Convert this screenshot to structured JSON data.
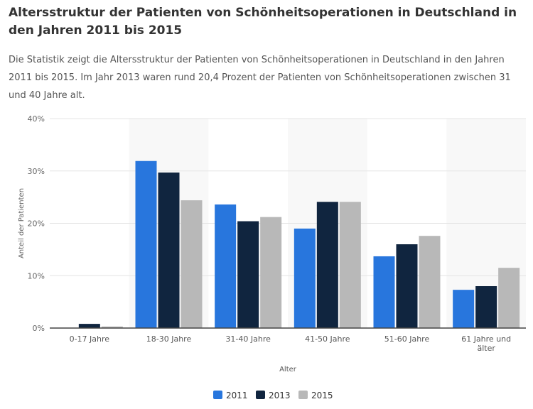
{
  "title": "Altersstruktur der Patienten von Schönheitsoperationen in Deutschland in den Jahren 2011 bis 2015",
  "description": "Die Statistik zeigt die Altersstruktur der Patienten von Schönheitsoperationen in Deutschland in den Jahren 2011 bis 2015. Im Jahr 2013 waren rund 20,4 Prozent der Patienten von Schönheitsoperationen zwischen 31 und 40 Jahre alt.",
  "chart_data": {
    "type": "bar",
    "xlabel": "Alter",
    "ylabel": "Anteil der Patienten",
    "ylim": [
      0,
      40
    ],
    "yticks": [
      "0%",
      "10%",
      "20%",
      "30%",
      "40%"
    ],
    "grid": true,
    "legend": "bottom",
    "categories": [
      "0-17 Jahre",
      "18-30 Jahre",
      "31-40 Jahre",
      "41-50 Jahre",
      "51-60 Jahre",
      "61 Jahre und älter"
    ],
    "series": [
      {
        "name": "2011",
        "color": "#2876dd",
        "values": [
          0,
          31.9,
          23.6,
          19.0,
          13.7,
          7.3
        ]
      },
      {
        "name": "2013",
        "color": "#10253f",
        "values": [
          0.8,
          29.7,
          20.4,
          24.1,
          16.0,
          8.0
        ]
      },
      {
        "name": "2015",
        "color": "#b8b8b8",
        "values": [
          0.3,
          24.4,
          21.2,
          24.1,
          17.6,
          11.5
        ]
      }
    ]
  }
}
